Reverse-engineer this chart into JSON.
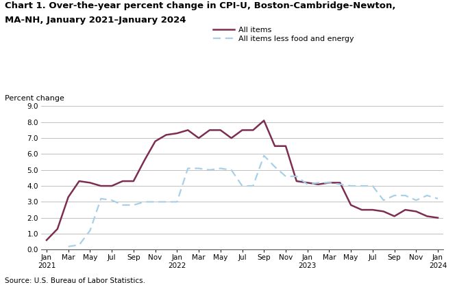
{
  "title_line1": "Chart 1. Over-the-year percent change in CPI-U, Boston-Cambridge-Newton,",
  "title_line2": "MA-NH, January 2021–January 2024",
  "ylabel": "Percent change",
  "source": "Source: U.S. Bureau of Labor Statistics.",
  "ylim": [
    0.0,
    9.0
  ],
  "yticks": [
    0.0,
    1.0,
    2.0,
    3.0,
    4.0,
    5.0,
    6.0,
    7.0,
    8.0,
    9.0
  ],
  "all_items_color": "#7b2d52",
  "core_items_color": "#a8cfe8",
  "background_color": "#ffffff",
  "grid_color": "#c0c0c0",
  "tick_positions": [
    0,
    2,
    4,
    6,
    8,
    10,
    12,
    14,
    16,
    18,
    20,
    22,
    24,
    26,
    28,
    30,
    32,
    34,
    36
  ],
  "tick_labels": [
    "Jan\n2021",
    "Mar",
    "May",
    "Jul",
    "Sep",
    "Nov",
    "Jan\n2022",
    "Mar",
    "May",
    "Jul",
    "Sep",
    "Nov",
    "Jan\n2023",
    "Mar",
    "May",
    "Jul",
    "Sep",
    "Nov",
    "Jan\n2024"
  ],
  "all_items": [
    0.6,
    1.3,
    3.3,
    4.3,
    4.2,
    4.0,
    4.0,
    4.3,
    4.3,
    5.6,
    6.8,
    7.2,
    7.3,
    7.5,
    7.0,
    7.5,
    7.5,
    7.0,
    7.5,
    7.5,
    8.1,
    6.5,
    6.5,
    4.3,
    4.2,
    4.1,
    4.2,
    4.2,
    2.8,
    2.5,
    2.5,
    2.4,
    2.1,
    2.5,
    2.4,
    2.1,
    2.0
  ],
  "core_items": [
    null,
    null,
    0.2,
    0.3,
    1.2,
    3.2,
    3.1,
    2.8,
    2.8,
    3.0,
    3.0,
    3.0,
    3.0,
    5.1,
    5.1,
    5.0,
    5.1,
    5.0,
    4.0,
    4.0,
    5.9,
    5.2,
    4.6,
    4.6,
    4.1,
    4.2,
    4.2,
    4.1,
    4.0,
    4.0,
    4.0,
    3.1,
    3.4,
    3.4,
    3.1,
    3.4,
    3.2
  ],
  "legend_labels": [
    "All items",
    "All items less food and energy"
  ]
}
